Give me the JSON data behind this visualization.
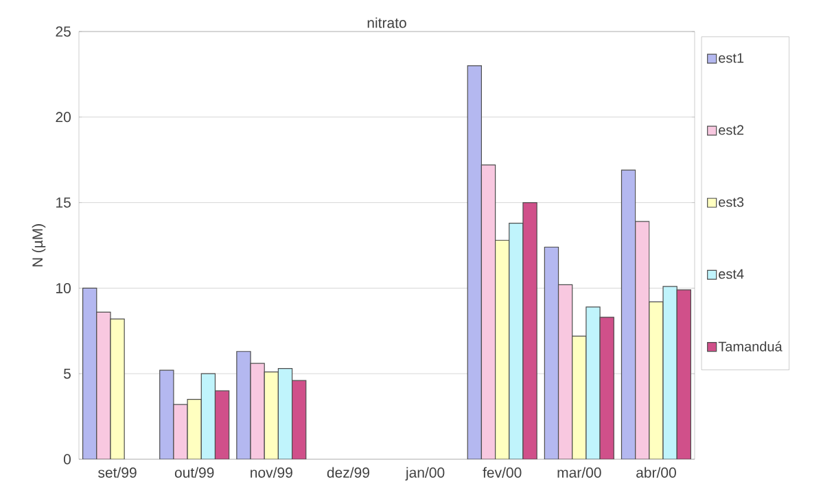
{
  "chart_data": {
    "type": "bar",
    "title": "nitrato",
    "ylabel": "N (µM)",
    "categories": [
      "set/99",
      "out/99",
      "nov/99",
      "dez/99",
      "jan/00",
      "fev/00",
      "mar/00",
      "abr/00"
    ],
    "series": [
      {
        "name": "est1",
        "color": "#b4b8f0",
        "values": [
          10.0,
          5.2,
          6.3,
          null,
          null,
          23.0,
          12.4,
          16.9
        ]
      },
      {
        "name": "est2",
        "color": "#f8c8e0",
        "values": [
          8.6,
          3.2,
          5.6,
          null,
          null,
          17.2,
          10.2,
          13.9
        ]
      },
      {
        "name": "est3",
        "color": "#ffffc0",
        "values": [
          8.2,
          3.5,
          5.1,
          null,
          null,
          12.8,
          7.2,
          9.2
        ]
      },
      {
        "name": "est4",
        "color": "#c0f4fc",
        "values": [
          null,
          5.0,
          5.3,
          null,
          null,
          13.8,
          8.9,
          10.1
        ]
      },
      {
        "name": "Tamanduá",
        "color": "#d0508a",
        "values": [
          null,
          4.0,
          4.6,
          null,
          null,
          15.0,
          8.3,
          9.9
        ]
      }
    ],
    "ylim": [
      0,
      25
    ],
    "yticks": [
      0,
      5,
      10,
      15,
      20,
      25
    ],
    "grid": "y",
    "legend": "right"
  }
}
